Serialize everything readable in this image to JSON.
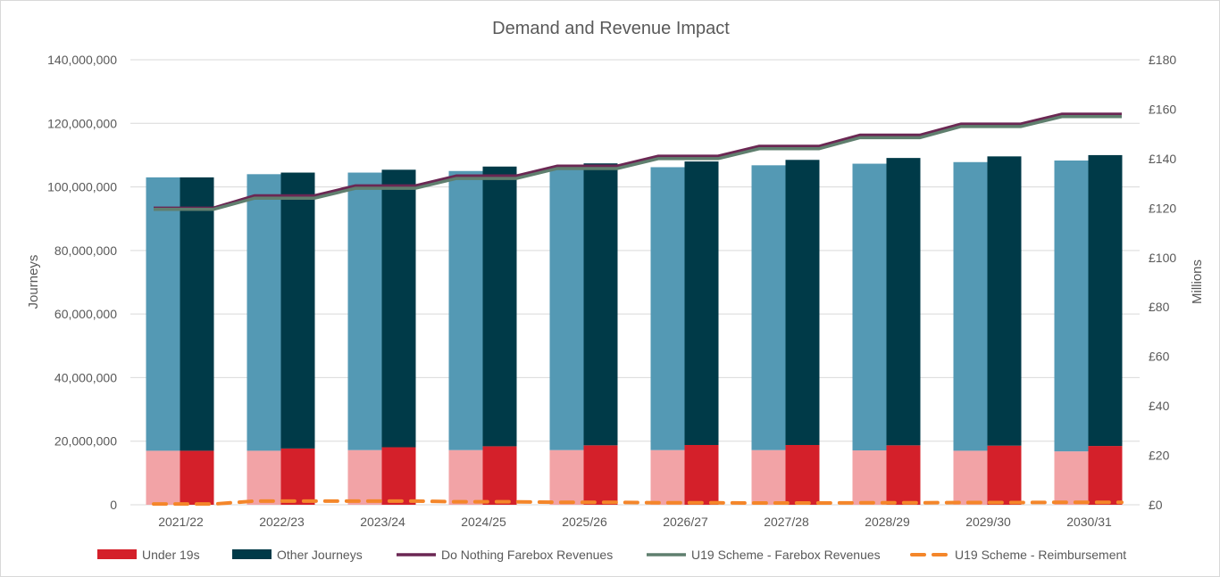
{
  "chart_data": {
    "type": "bar",
    "title": "Demand and Revenue Impact",
    "ylabel_left": "Journeys",
    "ylabel_right": "Millions",
    "categories": [
      "2021/22",
      "2022/23",
      "2023/24",
      "2024/25",
      "2025/26",
      "2026/27",
      "2027/28",
      "2028/29",
      "2029/30",
      "2030/31"
    ],
    "y_left_range": [
      0,
      140000000
    ],
    "y_left_ticks": [
      "0",
      "20,000,000",
      "40,000,000",
      "60,000,000",
      "80,000,000",
      "100,000,000",
      "120,000,000",
      "140,000,000"
    ],
    "y_right_range": [
      0,
      180
    ],
    "y_right_ticks": [
      "£0",
      "£20",
      "£40",
      "£60",
      "£80",
      "£100",
      "£120",
      "£140",
      "£160",
      "£180"
    ],
    "grid": true,
    "legend_position": "bottom",
    "baseline_bars": {
      "under19": [
        17000000,
        17000000,
        17200000,
        17200000,
        17200000,
        17200000,
        17200000,
        17100000,
        17000000,
        16800000
      ],
      "other_total": [
        103000000,
        104000000,
        104500000,
        105000000,
        105500000,
        106200000,
        106800000,
        107300000,
        107800000,
        108300000
      ]
    },
    "series": [
      {
        "name": "Under 19s",
        "kind": "bar",
        "color": "#d4202a",
        "values": [
          17000000,
          17700000,
          18100000,
          18400000,
          18700000,
          18800000,
          18800000,
          18700000,
          18600000,
          18500000
        ]
      },
      {
        "name": "Other Journeys",
        "kind": "bar",
        "color": "#003a48",
        "values": [
          86000000,
          86800000,
          87300000,
          88000000,
          88700000,
          89200000,
          89700000,
          90400000,
          91000000,
          91500000
        ]
      },
      {
        "name": "Do Nothing Farebox Revenues",
        "kind": "line",
        "color": "#6b2753",
        "values": [
          120,
          125,
          129,
          133,
          137,
          141,
          145,
          149.5,
          154,
          158
        ]
      },
      {
        "name": "U19 Scheme - Farebox Revenues",
        "kind": "line",
        "color": "#5f7f6e",
        "values": [
          119.5,
          124,
          128,
          132,
          136,
          140,
          144,
          148.5,
          153,
          157
        ]
      },
      {
        "name": "U19 Scheme - Reimbursement",
        "kind": "dashed-line",
        "color": "#f4862a",
        "values": [
          0.3,
          1.5,
          1.5,
          1.2,
          1.0,
          0.8,
          0.7,
          0.8,
          0.9,
          1.0
        ]
      }
    ],
    "colors": {
      "baseline_under19": "#f2a3a6",
      "baseline_other": "#5499b4",
      "grid": "#d9d9d9",
      "axis_text": "#595959"
    }
  }
}
